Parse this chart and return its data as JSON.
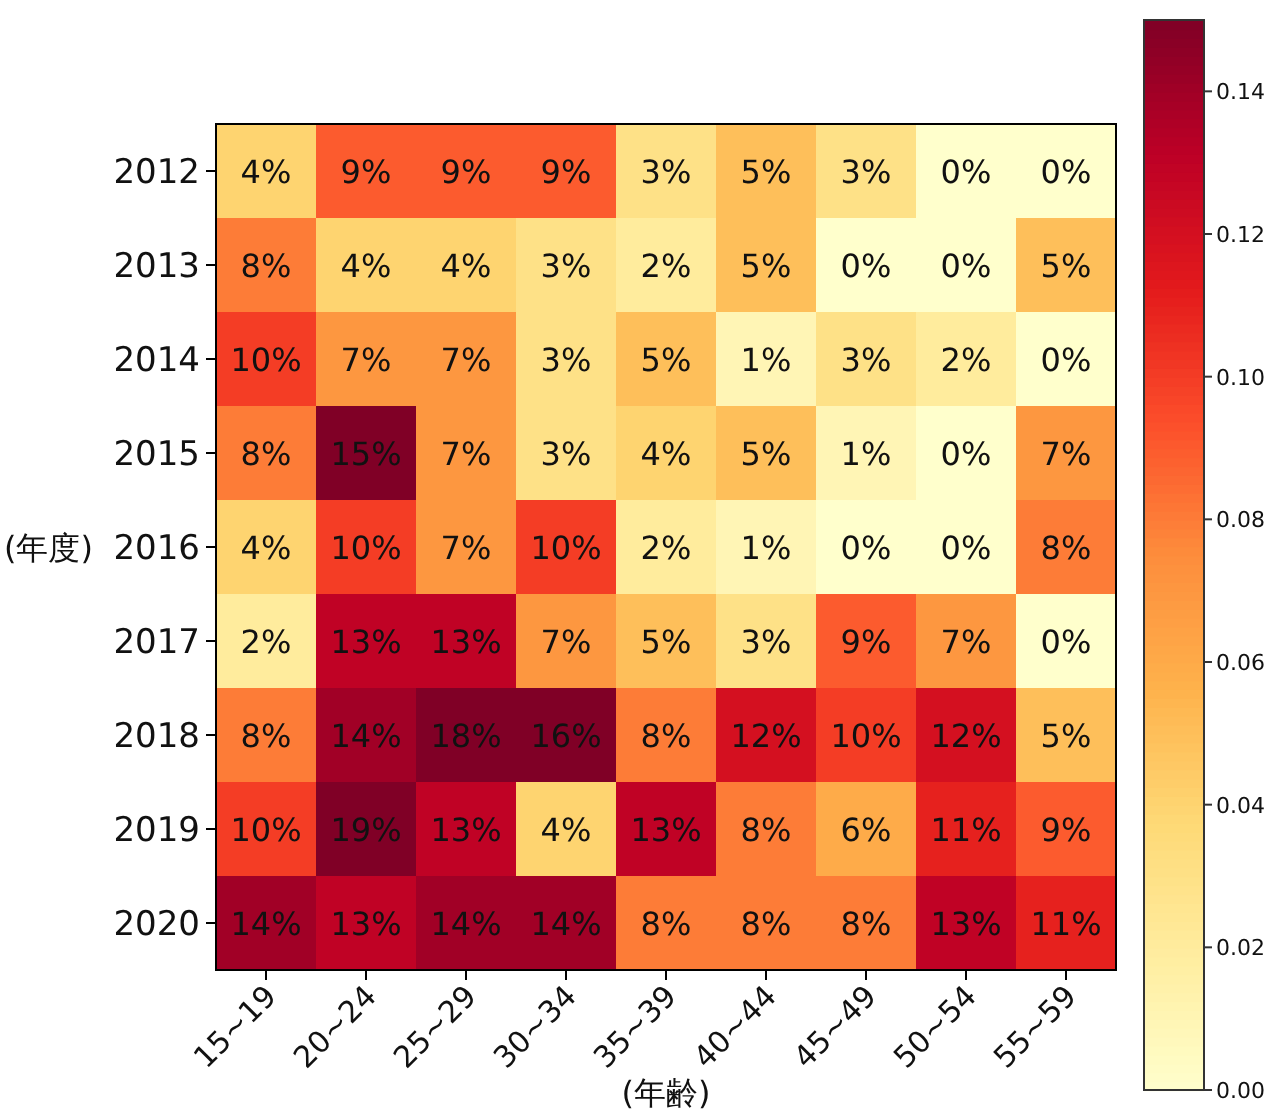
{
  "chart_data": {
    "type": "heatmap",
    "xlabel": "(年齢)",
    "ylabel": "(年度)",
    "categories": [
      "15~19",
      "20~24",
      "25~29",
      "30~34",
      "35~39",
      "40~44",
      "45~49",
      "50~54",
      "55~59"
    ],
    "y_categories": [
      "2012",
      "2013",
      "2014",
      "2015",
      "2016",
      "2017",
      "2018",
      "2019",
      "2020"
    ],
    "cells": [
      [
        0.04,
        0.09,
        0.09,
        0.09,
        0.03,
        0.05,
        0.03,
        0.0,
        0.0
      ],
      [
        0.08,
        0.04,
        0.04,
        0.03,
        0.02,
        0.05,
        0.0,
        0.0,
        0.05
      ],
      [
        0.1,
        0.07,
        0.07,
        0.03,
        0.05,
        0.01,
        0.03,
        0.02,
        0.0
      ],
      [
        0.08,
        0.15,
        0.07,
        0.03,
        0.04,
        0.05,
        0.01,
        0.0,
        0.07
      ],
      [
        0.04,
        0.1,
        0.07,
        0.1,
        0.02,
        0.01,
        0.0,
        0.0,
        0.08
      ],
      [
        0.02,
        0.13,
        0.13,
        0.07,
        0.05,
        0.03,
        0.09,
        0.07,
        0.0
      ],
      [
        0.08,
        0.14,
        0.18,
        0.16,
        0.08,
        0.12,
        0.1,
        0.12,
        0.05
      ],
      [
        0.1,
        0.19,
        0.13,
        0.04,
        0.13,
        0.08,
        0.06,
        0.11,
        0.09
      ],
      [
        0.14,
        0.13,
        0.14,
        0.14,
        0.08,
        0.08,
        0.08,
        0.13,
        0.11
      ]
    ],
    "cell_labels": [
      [
        "4%",
        "9%",
        "9%",
        "9%",
        "3%",
        "5%",
        "3%",
        "0%",
        "0%"
      ],
      [
        "8%",
        "4%",
        "4%",
        "3%",
        "2%",
        "5%",
        "0%",
        "0%",
        "5%"
      ],
      [
        "10%",
        "7%",
        "7%",
        "3%",
        "5%",
        "1%",
        "3%",
        "2%",
        "0%"
      ],
      [
        "8%",
        "15%",
        "7%",
        "3%",
        "4%",
        "5%",
        "1%",
        "0%",
        "7%"
      ],
      [
        "4%",
        "10%",
        "7%",
        "10%",
        "2%",
        "1%",
        "0%",
        "0%",
        "8%"
      ],
      [
        "2%",
        "13%",
        "13%",
        "7%",
        "5%",
        "3%",
        "9%",
        "7%",
        "0%"
      ],
      [
        "8%",
        "14%",
        "18%",
        "16%",
        "8%",
        "12%",
        "10%",
        "12%",
        "5%"
      ],
      [
        "10%",
        "19%",
        "13%",
        "4%",
        "13%",
        "8%",
        "6%",
        "11%",
        "9%"
      ],
      [
        "14%",
        "13%",
        "14%",
        "14%",
        "8%",
        "8%",
        "8%",
        "13%",
        "11%"
      ]
    ],
    "clim": [
      0,
      0.15
    ],
    "cticks": [
      {
        "value": 0,
        "label": "0.00"
      },
      {
        "value": 0.02,
        "label": "0.02"
      },
      {
        "value": 0.04,
        "label": "0.04"
      },
      {
        "value": 0.06,
        "label": "0.06"
      },
      {
        "value": 0.08,
        "label": "0.08"
      },
      {
        "value": 0.1,
        "label": "0.10"
      },
      {
        "value": 0.12,
        "label": "0.12"
      },
      {
        "value": 0.14,
        "label": "0.14"
      }
    ]
  }
}
